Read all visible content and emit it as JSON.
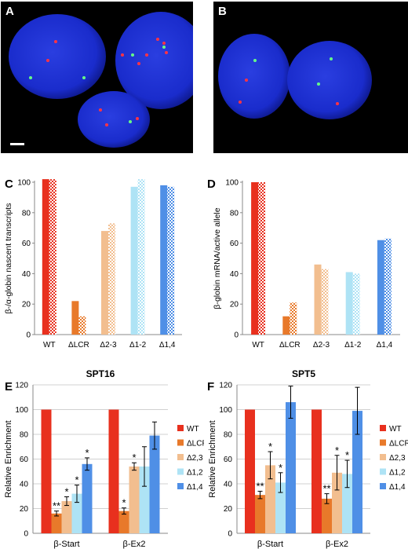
{
  "panel_labels": [
    "A",
    "B",
    "C",
    "D",
    "E",
    "F"
  ],
  "colors": {
    "WT": "#e8301e",
    "dLCR": "#e8792a",
    "d23": "#f2be8f",
    "d12": "#aee3f5",
    "d14": "#4f8fe6",
    "nucleus": "#1a2ccc",
    "spot_red": "#ff3344",
    "spot_green": "#66ff88"
  },
  "micrographs": {
    "A": {
      "nuclei": [
        {
          "cx": 72,
          "cy": 70,
          "rx": 62,
          "ry": 54
        },
        {
          "cx": 204,
          "cy": 75,
          "rx": 58,
          "ry": 62
        },
        {
          "cx": 144,
          "cy": 150,
          "rx": 46,
          "ry": 36
        }
      ],
      "spots": [
        {
          "x": 70,
          "y": 51,
          "c": "red"
        },
        {
          "x": 60,
          "y": 75,
          "c": "red"
        },
        {
          "x": 38,
          "y": 97,
          "c": "green"
        },
        {
          "x": 106,
          "y": 97,
          "c": "green"
        },
        {
          "x": 200,
          "y": 48,
          "c": "red"
        },
        {
          "x": 208,
          "y": 53,
          "c": "red"
        },
        {
          "x": 208,
          "y": 58,
          "c": "green"
        },
        {
          "x": 155,
          "y": 68,
          "c": "red"
        },
        {
          "x": 168,
          "y": 68,
          "c": "green"
        },
        {
          "x": 186,
          "y": 68,
          "c": "red"
        },
        {
          "x": 176,
          "y": 79,
          "c": "red"
        },
        {
          "x": 211,
          "y": 65,
          "c": "red"
        },
        {
          "x": 127,
          "y": 138,
          "c": "red"
        },
        {
          "x": 135,
          "y": 157,
          "c": "red"
        },
        {
          "x": 165,
          "y": 153,
          "c": "green"
        },
        {
          "x": 174,
          "y": 149,
          "c": "red"
        }
      ],
      "scale_bar": true
    },
    "B": {
      "nuclei": [
        {
          "cx": 52,
          "cy": 95,
          "rx": 46,
          "ry": 54
        },
        {
          "cx": 148,
          "cy": 100,
          "rx": 54,
          "ry": 50
        }
      ],
      "spots": [
        {
          "x": 53,
          "y": 75,
          "c": "green"
        },
        {
          "x": 42,
          "y": 100,
          "c": "red"
        },
        {
          "x": 34,
          "y": 128,
          "c": "red"
        },
        {
          "x": 150,
          "y": 73,
          "c": "green"
        },
        {
          "x": 134,
          "y": 105,
          "c": "green"
        },
        {
          "x": 158,
          "y": 130,
          "c": "red"
        }
      ]
    }
  },
  "chart_data": [
    {
      "id": "C",
      "type": "bar",
      "title": "",
      "ylabel": "β-/α-globin nascent transcripts",
      "categories": [
        "WT",
        "ΔLCR",
        "Δ2-3",
        "Δ1-2",
        "Δ1,4"
      ],
      "series": [
        {
          "pattern": "solid",
          "values": [
            102,
            22,
            68,
            97,
            98
          ]
        },
        {
          "pattern": "checker",
          "values": [
            102,
            12,
            73,
            102,
            97
          ]
        }
      ],
      "ylim": [
        0,
        100
      ],
      "yticks": [
        0,
        20,
        40,
        60,
        80,
        100
      ]
    },
    {
      "id": "D",
      "type": "bar",
      "title": "",
      "ylabel": "β-globin mRNA/active allele",
      "categories": [
        "WT",
        "ΔLCR",
        "Δ2-3",
        "Δ1-2",
        "Δ1,4"
      ],
      "series": [
        {
          "pattern": "solid",
          "values": [
            100,
            12,
            46,
            41,
            62
          ]
        },
        {
          "pattern": "checker",
          "values": [
            100,
            21,
            43,
            40,
            63
          ]
        }
      ],
      "ylim": [
        0,
        100
      ],
      "yticks": [
        0,
        20,
        40,
        60,
        80,
        100
      ]
    },
    {
      "id": "E",
      "type": "bar",
      "title": "SPT16",
      "ylabel": "Relative Enrichment",
      "groups": [
        "β-Start",
        "β-Ex2"
      ],
      "series": [
        {
          "name": "WT",
          "values": [
            100,
            100
          ],
          "err": [
            0,
            0
          ],
          "sig": [
            "",
            ""
          ]
        },
        {
          "name": "ΔLCR",
          "values": [
            16,
            18
          ],
          "err": [
            2,
            2.5
          ],
          "sig": [
            "**",
            "*"
          ]
        },
        {
          "name": "Δ2,3",
          "values": [
            26,
            54
          ],
          "err": [
            3.5,
            3
          ],
          "sig": [
            "*",
            "*"
          ]
        },
        {
          "name": "Δ1,2",
          "values": [
            32,
            54
          ],
          "err": [
            7,
            16
          ],
          "sig": [
            "*",
            ""
          ]
        },
        {
          "name": "Δ1,4",
          "values": [
            56,
            79
          ],
          "err": [
            5,
            11
          ],
          "sig": [
            "*",
            ""
          ]
        }
      ],
      "ylim": [
        0,
        120
      ],
      "yticks": [
        0,
        20,
        40,
        60,
        80,
        100,
        120
      ],
      "legend": "right"
    },
    {
      "id": "F",
      "type": "bar",
      "title": "SPT5",
      "ylabel": "Relative Enrichment",
      "groups": [
        "β-Start",
        "β-Ex2"
      ],
      "series": [
        {
          "name": "WT",
          "values": [
            100,
            100
          ],
          "err": [
            0,
            0
          ],
          "sig": [
            "",
            ""
          ]
        },
        {
          "name": "ΔLCR",
          "values": [
            31,
            28
          ],
          "err": [
            3,
            4
          ],
          "sig": [
            "**",
            "**"
          ]
        },
        {
          "name": "Δ2,3",
          "values": [
            55,
            49
          ],
          "err": [
            11,
            14
          ],
          "sig": [
            "*",
            "*"
          ]
        },
        {
          "name": "Δ1,2",
          "values": [
            41,
            48
          ],
          "err": [
            8,
            11
          ],
          "sig": [
            "*",
            "*"
          ]
        },
        {
          "name": "Δ1,4",
          "values": [
            106,
            99
          ],
          "err": [
            13,
            19
          ],
          "sig": [
            "",
            ""
          ]
        }
      ],
      "ylim": [
        0,
        120
      ],
      "yticks": [
        0,
        20,
        40,
        60,
        80,
        100,
        120
      ],
      "legend": "right"
    }
  ]
}
